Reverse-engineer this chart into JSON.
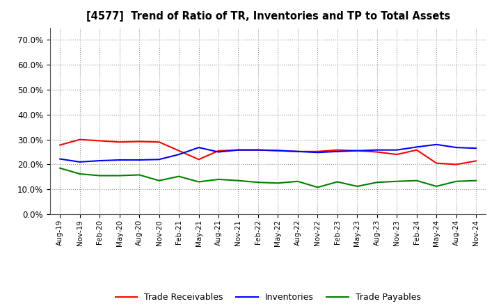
{
  "title": "[4577]  Trend of Ratio of TR, Inventories and TP to Total Assets",
  "x_labels": [
    "Aug-19",
    "Nov-19",
    "Feb-20",
    "May-20",
    "Aug-20",
    "Nov-20",
    "Feb-21",
    "May-21",
    "Aug-21",
    "Nov-21",
    "Feb-22",
    "May-22",
    "Aug-22",
    "Nov-22",
    "Feb-23",
    "May-23",
    "Aug-23",
    "Nov-23",
    "Feb-24",
    "May-24",
    "Aug-24",
    "Nov-24"
  ],
  "trade_receivables": [
    0.278,
    0.3,
    0.295,
    0.29,
    0.292,
    0.29,
    0.255,
    0.22,
    0.255,
    0.258,
    0.258,
    0.255,
    0.252,
    0.252,
    0.258,
    0.255,
    0.25,
    0.24,
    0.258,
    0.205,
    0.2,
    0.214
  ],
  "inventories": [
    0.222,
    0.21,
    0.215,
    0.218,
    0.218,
    0.22,
    0.24,
    0.268,
    0.25,
    0.258,
    0.258,
    0.256,
    0.252,
    0.248,
    0.252,
    0.255,
    0.258,
    0.258,
    0.27,
    0.28,
    0.268,
    0.265
  ],
  "trade_payables": [
    0.185,
    0.162,
    0.155,
    0.155,
    0.158,
    0.135,
    0.152,
    0.13,
    0.14,
    0.135,
    0.128,
    0.125,
    0.132,
    0.108,
    0.13,
    0.112,
    0.128,
    0.132,
    0.135,
    0.112,
    0.132,
    0.135
  ],
  "tr_color": "#ff0000",
  "inv_color": "#0000ff",
  "tp_color": "#008000",
  "ylim": [
    0.0,
    0.75
  ],
  "yticks": [
    0.0,
    0.1,
    0.2,
    0.3,
    0.4,
    0.5,
    0.6,
    0.7
  ],
  "bg_color": "#ffffff",
  "grid_color": "#aaaaaa",
  "legend_labels": [
    "Trade Receivables",
    "Inventories",
    "Trade Payables"
  ]
}
